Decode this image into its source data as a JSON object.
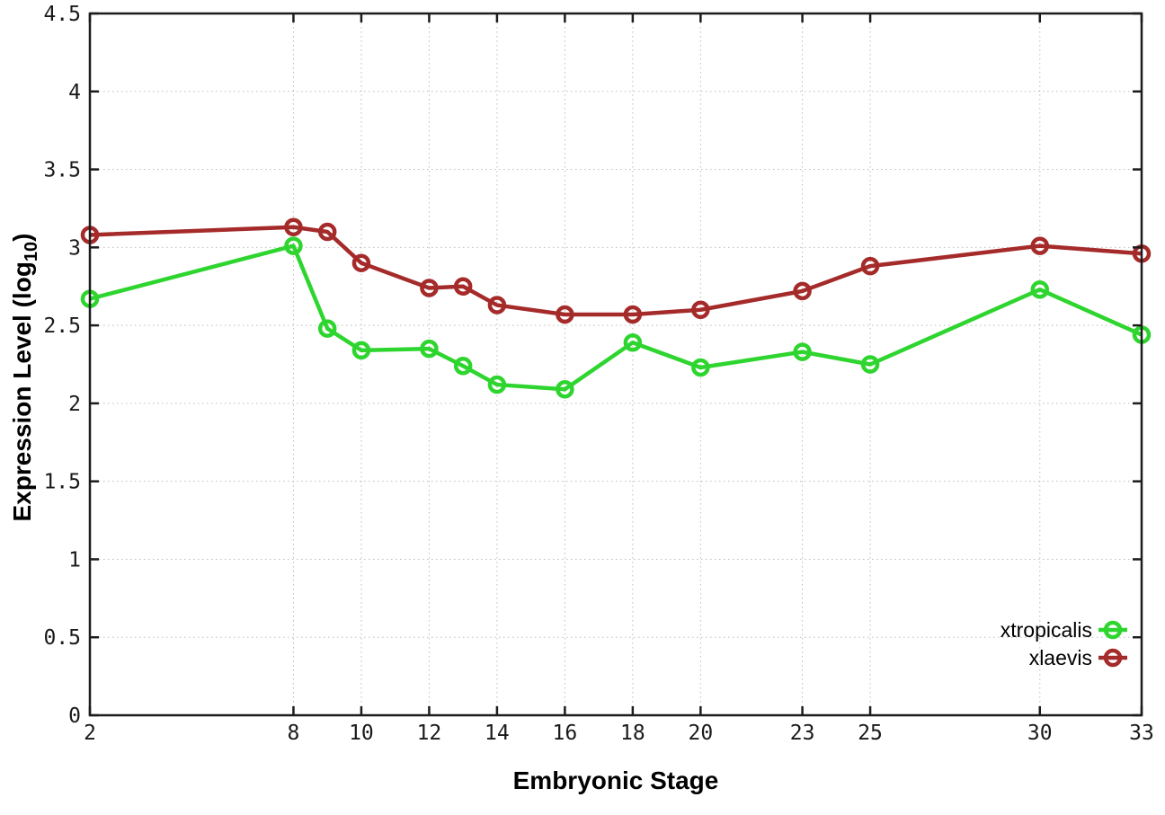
{
  "chart_data": {
    "type": "line",
    "title": "",
    "xlabel": "Embryonic Stage",
    "ylabel": "Expression Level (log10)",
    "ylabel_parts": {
      "prefix": "Expression Level (log",
      "subscript": "10",
      "suffix": ")"
    },
    "x": [
      2,
      8,
      9,
      10,
      12,
      13,
      14,
      16,
      18,
      20,
      23,
      25,
      30,
      33
    ],
    "xticks": [
      2,
      8,
      10,
      12,
      14,
      16,
      18,
      20,
      23,
      25,
      30,
      33
    ],
    "yticks": [
      0,
      0.5,
      1,
      1.5,
      2,
      2.5,
      3,
      3.5,
      4,
      4.5
    ],
    "xlim": [
      2,
      33
    ],
    "ylim": [
      0,
      4.5
    ],
    "grid": true,
    "grid_style": "dotted",
    "marker": "open-circle",
    "legend_position": "bottom-right",
    "series": [
      {
        "name": "xtropicalis",
        "color": "#2ed52e",
        "values": [
          2.67,
          3.01,
          2.48,
          2.34,
          2.35,
          2.24,
          2.12,
          2.09,
          2.39,
          2.23,
          2.33,
          2.25,
          2.73,
          2.44
        ]
      },
      {
        "name": "xlaevis",
        "color": "#a52a2a",
        "values": [
          3.08,
          3.13,
          3.1,
          2.9,
          2.74,
          2.75,
          2.63,
          2.57,
          2.57,
          2.6,
          2.72,
          2.88,
          3.01,
          2.96
        ]
      }
    ],
    "colors": {
      "grid": "#bdbdbd",
      "border": "#1c1c1c",
      "text": "#000000"
    }
  }
}
